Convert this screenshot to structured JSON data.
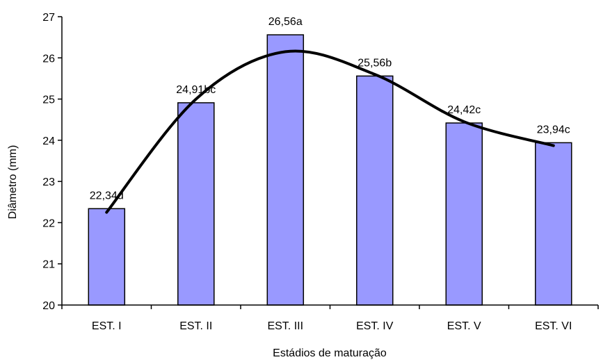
{
  "chart_data": {
    "type": "bar",
    "categories": [
      "EST. I",
      "EST. II",
      "EST. III",
      "EST. IV",
      "EST. V",
      "EST. VI"
    ],
    "values": [
      22.34,
      24.91,
      26.56,
      25.56,
      24.42,
      23.94
    ],
    "data_labels": [
      "22,34d",
      "24,91bc",
      "26,56a",
      "25,56b",
      "24,42c",
      "23,94c"
    ],
    "xlabel": "Estádios de maturação",
    "ylabel": "Diâmetro (mm)",
    "ylim": [
      20,
      27
    ],
    "yticks": [
      "20",
      "21",
      "22",
      "23",
      "24",
      "25",
      "26",
      "27"
    ],
    "grid": false,
    "bar_color": "#9999ff",
    "trend_curve": {
      "type": "polynomial",
      "color": "#000000",
      "points": [
        {
          "x": "EST. I",
          "y": 22.25
        },
        {
          "x": "EST. II",
          "y": 25.0
        },
        {
          "x": "EST. III",
          "y": 26.15
        },
        {
          "x": "EST. IV",
          "y": 25.6
        },
        {
          "x": "EST. V",
          "y": 24.45
        },
        {
          "x": "EST. VI",
          "y": 23.87
        }
      ]
    }
  }
}
